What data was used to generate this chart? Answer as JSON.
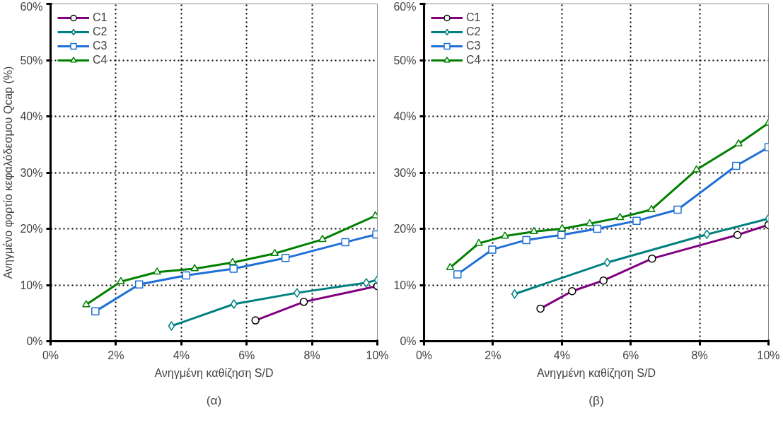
{
  "chart_data": [
    {
      "type": "line",
      "ylabel": "Ανηγμένο φορτίο κεφαλόδεσμου Qcap (%)",
      "xlabel": "Ανηγμένη καθίζηση S/D",
      "annotations": [
        "(α)"
      ],
      "xlim": [
        0,
        10
      ],
      "ylim": [
        0,
        60
      ],
      "xticks": [
        {
          "value": 0,
          "label": "0%"
        },
        {
          "value": 2,
          "label": "2%"
        },
        {
          "value": 4,
          "label": "4%"
        },
        {
          "value": 6,
          "label": "6%"
        },
        {
          "value": 8,
          "label": "8%"
        },
        {
          "value": 10,
          "label": "10%"
        }
      ],
      "yticks": [
        {
          "value": 0,
          "label": "0%"
        },
        {
          "value": 10,
          "label": "10%"
        },
        {
          "value": 20,
          "label": "20%"
        },
        {
          "value": 30,
          "label": "30%"
        },
        {
          "value": 40,
          "label": "40%"
        },
        {
          "value": 50,
          "label": "50%"
        },
        {
          "value": 60,
          "label": "60%"
        }
      ],
      "grid": true,
      "legend": "top left",
      "line_style": "solid",
      "series": [
        {
          "name": "C1",
          "color": "#800080",
          "marker": "circle",
          "x": [
            6.27,
            7.75,
            10.0
          ],
          "values": [
            3.7,
            7.0,
            9.8
          ]
        },
        {
          "name": "C2",
          "color": "#008080",
          "marker": "diamond",
          "x": [
            3.7,
            5.61,
            7.54,
            9.66,
            10.0
          ],
          "values": [
            2.7,
            6.6,
            8.6,
            10.4,
            10.9
          ]
        },
        {
          "name": "C3",
          "color": "#1f6fd6",
          "marker": "square",
          "x": [
            1.37,
            2.71,
            4.15,
            5.6,
            7.19,
            9.02,
            9.97
          ],
          "values": [
            5.3,
            10.1,
            11.7,
            12.9,
            14.8,
            17.6,
            19.0
          ]
        },
        {
          "name": "C4",
          "color": "#008000",
          "marker": "triangle",
          "x": [
            1.09,
            2.15,
            3.26,
            4.41,
            5.57,
            6.86,
            8.32,
            9.94
          ],
          "values": [
            6.5,
            10.6,
            12.3,
            12.9,
            14.0,
            15.6,
            18.1,
            22.3
          ]
        }
      ]
    },
    {
      "type": "line",
      "xlabel": "Ανηγμένη καθίζηση S/D",
      "annotations": [
        "(β)"
      ],
      "xlim": [
        0,
        10
      ],
      "ylim": [
        0,
        60
      ],
      "xticks": [
        {
          "value": 0,
          "label": "0%"
        },
        {
          "value": 2,
          "label": "2%"
        },
        {
          "value": 4,
          "label": "4%"
        },
        {
          "value": 6,
          "label": "6%"
        },
        {
          "value": 8,
          "label": "8%"
        },
        {
          "value": 10,
          "label": "10%"
        }
      ],
      "yticks": [
        {
          "value": 0,
          "label": "0%"
        },
        {
          "value": 10,
          "label": "10%"
        },
        {
          "value": 20,
          "label": "20%"
        },
        {
          "value": 30,
          "label": "30%"
        },
        {
          "value": 40,
          "label": "40%"
        },
        {
          "value": 50,
          "label": "50%"
        },
        {
          "value": 60,
          "label": "60%"
        }
      ],
      "grid": true,
      "legend": "top left",
      "line_style": "solid",
      "series": [
        {
          "name": "C1",
          "color": "#800080",
          "marker": "circle",
          "x": [
            3.38,
            4.3,
            5.21,
            6.62,
            9.1,
            10.0
          ],
          "values": [
            5.8,
            8.9,
            10.8,
            14.7,
            18.9,
            20.7
          ]
        },
        {
          "name": "C2",
          "color": "#008080",
          "marker": "diamond",
          "x": [
            2.63,
            5.32,
            8.21,
            10.0
          ],
          "values": [
            8.4,
            14.0,
            19.0,
            21.8
          ]
        },
        {
          "name": "C3",
          "color": "#1f6fd6",
          "marker": "square",
          "x": [
            0.97,
            1.98,
            2.97,
            3.99,
            5.03,
            6.17,
            7.36,
            9.06,
            10.0
          ],
          "values": [
            11.9,
            16.3,
            18.0,
            18.9,
            20.0,
            21.4,
            23.4,
            31.2,
            34.5
          ]
        },
        {
          "name": "C4",
          "color": "#008000",
          "marker": "triangle",
          "x": [
            0.76,
            1.59,
            2.35,
            3.19,
            4.01,
            4.81,
            5.69,
            6.6,
            7.91,
            9.13,
            10.0
          ],
          "values": [
            13.1,
            17.4,
            18.7,
            19.5,
            20.0,
            20.9,
            22.0,
            23.4,
            30.5,
            35.1,
            38.8
          ]
        }
      ]
    }
  ]
}
